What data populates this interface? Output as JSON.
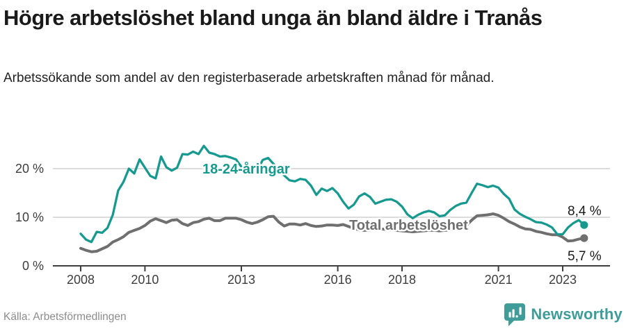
{
  "header": {
    "title": "Högre arbetslöshet bland unga än bland äldre i Tranås",
    "subtitle": "Arbetssökande som andel av den registerbaserade arbetskraften månad för månad."
  },
  "chart_data": {
    "type": "line",
    "title": "Högre arbetslöshet bland unga än bland äldre i Tranås",
    "x_start_year": 2008,
    "x_step_months": 2,
    "x_end": "2023",
    "ylim": [
      0,
      26
    ],
    "grid": "horizontal",
    "yticks": [
      {
        "value": 0,
        "label": "0 %"
      },
      {
        "value": 10,
        "label": "10 %"
      },
      {
        "value": 20,
        "label": "20 %"
      }
    ],
    "xticks": [
      {
        "year": 2008,
        "label": "2008"
      },
      {
        "year": 2010,
        "label": "2010"
      },
      {
        "year": 2013,
        "label": "2013"
      },
      {
        "year": 2016,
        "label": "2016"
      },
      {
        "year": 2018,
        "label": "2018"
      },
      {
        "year": 2021,
        "label": "2021"
      },
      {
        "year": 2023,
        "label": "2023"
      }
    ],
    "series": [
      {
        "name": "Total arbetslöshet",
        "color": "#6f6f6f",
        "end_label": "5,7 %",
        "end_value": 5.7,
        "values": [
          3.6,
          3.2,
          2.9,
          3.0,
          3.5,
          4.0,
          4.9,
          5.4,
          6.0,
          6.9,
          7.3,
          7.7,
          8.3,
          9.2,
          9.7,
          9.3,
          8.9,
          9.4,
          9.5,
          8.7,
          8.3,
          8.9,
          9.1,
          9.6,
          9.8,
          9.3,
          9.3,
          9.8,
          9.8,
          9.8,
          9.5,
          9.0,
          8.7,
          9.0,
          9.5,
          10.1,
          10.2,
          9.0,
          8.2,
          8.6,
          8.6,
          8.4,
          8.7,
          8.3,
          8.1,
          8.2,
          8.4,
          8.4,
          8.3,
          8.5,
          8.1,
          7.7,
          7.4,
          7.3,
          7.4,
          7.5,
          7.6,
          7.5,
          7.4,
          7.3,
          7.2,
          7.1,
          7.0,
          7.1,
          7.2,
          7.3,
          7.3,
          7.2,
          7.3,
          7.4,
          7.6,
          7.9,
          8.3,
          9.4,
          10.3,
          10.4,
          10.5,
          10.7,
          10.4,
          9.8,
          9.1,
          8.6,
          8.0,
          7.6,
          7.5,
          7.1,
          6.9,
          6.6,
          6.4,
          6.4,
          5.9,
          5.1,
          5.2,
          5.5,
          5.7
        ]
      },
      {
        "name": "18-24-åringar",
        "color": "#17998f",
        "end_label": "8,4 %",
        "end_value": 8.4,
        "values": [
          6.6,
          5.4,
          4.9,
          7.0,
          6.8,
          7.8,
          10.5,
          15.5,
          17.3,
          20.0,
          19.0,
          21.9,
          20.2,
          18.5,
          18.0,
          22.5,
          20.3,
          19.6,
          20.2,
          23.0,
          22.9,
          23.5,
          23.0,
          24.7,
          23.3,
          23.0,
          22.5,
          22.6,
          22.3,
          21.9,
          20.4,
          19.0,
          19.2,
          19.8,
          21.8,
          22.2,
          21.0,
          19.9,
          18.6,
          17.6,
          17.4,
          17.9,
          17.7,
          16.5,
          14.6,
          15.9,
          15.4,
          16.0,
          14.9,
          13.2,
          11.8,
          12.6,
          14.3,
          14.9,
          14.2,
          12.8,
          13.2,
          13.6,
          13.7,
          13.2,
          12.2,
          10.6,
          9.8,
          10.5,
          11.0,
          11.3,
          11.0,
          10.2,
          10.4,
          11.5,
          12.3,
          12.8,
          13.0,
          15.0,
          16.9,
          16.6,
          16.2,
          16.5,
          16.1,
          14.8,
          13.8,
          11.6,
          10.7,
          10.1,
          9.6,
          9.0,
          8.9,
          8.5,
          7.9,
          6.5,
          6.5,
          7.9,
          8.8,
          9.4,
          8.4
        ]
      }
    ]
  },
  "footer": {
    "source": "Källa: Arbetsförmedlingen",
    "brand": "Newsworthy",
    "brand_color": "#3f9c98"
  }
}
